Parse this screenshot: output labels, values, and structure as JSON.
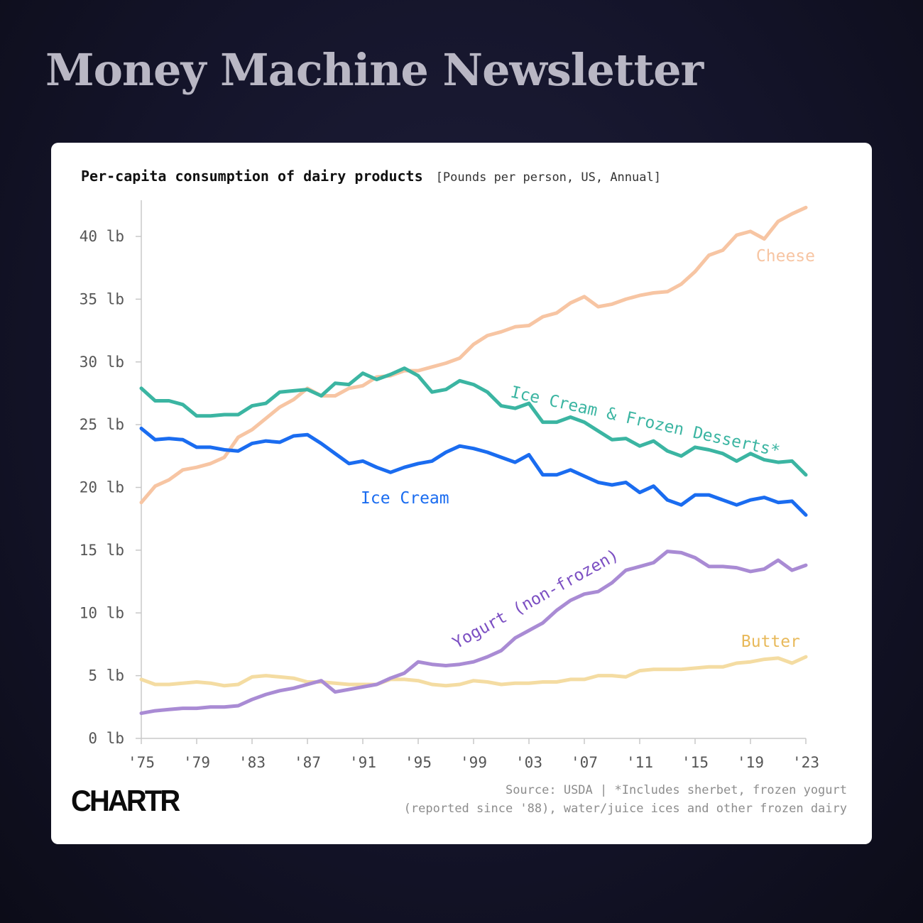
{
  "header": {
    "title": "Money Machine Newsletter"
  },
  "chart_title": {
    "main": "Per-capita consumption of dairy products",
    "sub": "[Pounds per person, US, Annual]"
  },
  "footnote": {
    "line1": "Source: USDA | *Includes sherbet, frozen yogurt",
    "line2": "(reported since '88), water/juice ices and other frozen dairy"
  },
  "logo": "CHARTR",
  "chart_data": {
    "type": "line",
    "title": "Per-capita consumption of dairy products",
    "subtitle": "[Pounds per person, US, Annual]",
    "xlim": [
      1975,
      2023
    ],
    "ylim": [
      0,
      43
    ],
    "x_ticks": [
      1975,
      1979,
      1983,
      1987,
      1991,
      1995,
      1999,
      2003,
      2007,
      2011,
      2015,
      2019,
      2023
    ],
    "x_tick_labels": [
      "'75",
      "'79",
      "'83",
      "'87",
      "'91",
      "'95",
      "'99",
      "'03",
      "'07",
      "'11",
      "'15",
      "'19",
      "'23"
    ],
    "y_ticks": [
      0,
      5,
      10,
      15,
      20,
      25,
      30,
      35,
      40
    ],
    "y_tick_labels": [
      "0 lb",
      "5 lb",
      "10 lb",
      "15 lb",
      "20 lb",
      "25 lb",
      "30 lb",
      "35 lb",
      "40 lb"
    ],
    "grid": false,
    "x_start": 1975,
    "series": [
      {
        "name": "Cheese",
        "color": "#f7c5a3",
        "values": [
          18.8,
          20.1,
          20.6,
          21.4,
          21.6,
          21.9,
          22.4,
          24.0,
          24.6,
          25.5,
          26.4,
          27.0,
          27.9,
          27.3,
          27.3,
          27.9,
          28.1,
          28.8,
          28.9,
          29.3,
          29.3,
          29.6,
          29.9,
          30.3,
          31.4,
          32.1,
          32.4,
          32.8,
          32.9,
          33.6,
          33.9,
          34.7,
          35.2,
          34.4,
          34.6,
          35.0,
          35.3,
          35.5,
          35.6,
          36.2,
          37.2,
          38.5,
          38.9,
          40.1,
          40.4,
          39.8,
          41.2,
          41.8,
          42.3
        ]
      },
      {
        "name": "Ice Cream & Frozen Desserts*",
        "color": "#3bb5a2",
        "values": [
          27.9,
          26.9,
          26.9,
          26.6,
          25.7,
          25.7,
          25.8,
          25.8,
          26.5,
          26.7,
          27.6,
          27.7,
          27.8,
          27.3,
          28.3,
          28.2,
          29.1,
          28.6,
          29.0,
          29.5,
          28.9,
          27.6,
          27.8,
          28.5,
          28.2,
          27.6,
          26.5,
          26.3,
          26.7,
          25.2,
          25.2,
          25.6,
          25.2,
          24.5,
          23.8,
          23.9,
          23.3,
          23.7,
          22.9,
          22.5,
          23.2,
          23.0,
          22.7,
          22.1,
          22.7,
          22.2,
          22.0,
          22.1,
          21.0
        ]
      },
      {
        "name": "Ice Cream",
        "color": "#1a6cf0",
        "values": [
          24.7,
          23.8,
          23.9,
          23.8,
          23.2,
          23.2,
          23.0,
          22.9,
          23.5,
          23.7,
          23.6,
          24.1,
          24.2,
          23.5,
          22.7,
          21.9,
          22.1,
          21.6,
          21.2,
          21.6,
          21.9,
          22.1,
          22.8,
          23.3,
          23.1,
          22.8,
          22.4,
          22.0,
          22.6,
          21.0,
          21.0,
          21.4,
          20.9,
          20.4,
          20.2,
          20.4,
          19.6,
          20.1,
          19.0,
          18.6,
          19.4,
          19.4,
          19.0,
          18.6,
          19.0,
          19.2,
          18.8,
          18.9,
          17.8
        ]
      },
      {
        "name": "Yogurt (non-frozen)",
        "color": "#a98bd4",
        "values": [
          2.0,
          2.2,
          2.3,
          2.4,
          2.4,
          2.5,
          2.5,
          2.6,
          3.1,
          3.5,
          3.8,
          4.0,
          4.3,
          4.6,
          3.7,
          3.9,
          4.1,
          4.3,
          4.8,
          5.2,
          6.1,
          5.9,
          5.8,
          5.9,
          6.1,
          6.5,
          7.0,
          8.0,
          8.6,
          9.2,
          10.2,
          11.0,
          11.5,
          11.7,
          12.4,
          13.4,
          13.7,
          14.0,
          14.9,
          14.8,
          14.4,
          13.7,
          13.7,
          13.6,
          13.3,
          13.5,
          14.2,
          13.4,
          13.8
        ]
      },
      {
        "name": "Butter",
        "color": "#f4dca2",
        "values": [
          4.7,
          4.3,
          4.3,
          4.4,
          4.5,
          4.4,
          4.2,
          4.3,
          4.9,
          5.0,
          4.9,
          4.8,
          4.5,
          4.5,
          4.4,
          4.3,
          4.3,
          4.3,
          4.7,
          4.7,
          4.6,
          4.3,
          4.2,
          4.3,
          4.6,
          4.5,
          4.3,
          4.4,
          4.4,
          4.5,
          4.5,
          4.7,
          4.7,
          5.0,
          5.0,
          4.9,
          5.4,
          5.5,
          5.5,
          5.5,
          5.6,
          5.7,
          5.7,
          6.0,
          6.1,
          6.3,
          6.4,
          6.0,
          6.5
        ]
      }
    ],
    "annotations": [
      {
        "text": "Cheese",
        "color": "#f7c5a3"
      },
      {
        "text": "Ice Cream & Frozen Desserts*",
        "color": "#3bb5a2"
      },
      {
        "text": "Ice Cream",
        "color": "#1a6cf0"
      },
      {
        "text": "Yogurt (non-frozen)",
        "color": "#7b4ec2"
      },
      {
        "text": "Butter",
        "color": "#e8b95a"
      }
    ]
  }
}
